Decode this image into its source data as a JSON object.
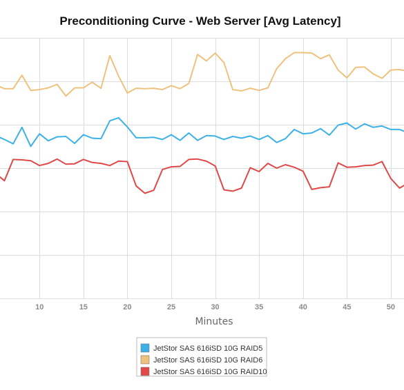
{
  "chart_data": {
    "type": "line",
    "title": "Preconditioning Curve - Web Server [Avg Latency]",
    "xlabel": "Minutes",
    "ylabel": "",
    "xlim": [
      5.5,
      51.5
    ],
    "ylim": [
      0,
      6
    ],
    "x_ticks": [
      10,
      15,
      20,
      25,
      30,
      35,
      40,
      45,
      50
    ],
    "grid": true,
    "legend_position": "bottom-center",
    "x": [
      5,
      6,
      7,
      8,
      9,
      10,
      11,
      12,
      13,
      14,
      15,
      16,
      17,
      18,
      19,
      20,
      21,
      22,
      23,
      24,
      25,
      26,
      27,
      28,
      29,
      30,
      31,
      32,
      33,
      34,
      35,
      36,
      37,
      38,
      39,
      40,
      41,
      42,
      43,
      44,
      45,
      46,
      47,
      48,
      49,
      50,
      51,
      52
    ],
    "series": [
      {
        "name": "JetStor SAS 616iSD 10G RAID5",
        "color": "#3cb1e8",
        "values": [
          3.75,
          3.66,
          3.56,
          3.94,
          3.5,
          3.79,
          3.63,
          3.72,
          3.73,
          3.57,
          3.77,
          3.69,
          3.68,
          4.09,
          4.16,
          3.95,
          3.7,
          3.7,
          3.71,
          3.66,
          3.77,
          3.64,
          3.81,
          3.64,
          3.75,
          3.74,
          3.66,
          3.73,
          3.69,
          3.74,
          3.66,
          3.75,
          3.59,
          3.68,
          3.89,
          3.79,
          3.81,
          3.91,
          3.76,
          3.99,
          4.04,
          3.9,
          4.02,
          3.94,
          3.97,
          3.89,
          3.89,
          3.81
        ]
      },
      {
        "name": "JetStor SAS 616iSD 10G RAID6",
        "color": "#eec27e",
        "values": [
          4.92,
          4.83,
          4.83,
          5.14,
          4.79,
          4.81,
          4.85,
          4.93,
          4.66,
          4.85,
          4.85,
          4.98,
          4.84,
          5.59,
          5.12,
          4.73,
          4.84,
          4.83,
          4.84,
          4.81,
          4.9,
          4.83,
          4.95,
          5.62,
          5.47,
          5.65,
          5.43,
          4.81,
          4.78,
          4.84,
          4.79,
          4.85,
          5.29,
          5.52,
          5.66,
          5.66,
          5.65,
          5.52,
          5.61,
          5.26,
          5.08,
          5.32,
          5.33,
          5.17,
          5.07,
          5.26,
          5.27,
          5.23
        ]
      },
      {
        "name": "JetStor SAS 616iSD 10G RAID10",
        "color": "#e04848",
        "values": [
          2.88,
          2.71,
          3.2,
          3.19,
          3.17,
          3.06,
          3.11,
          3.21,
          3.09,
          3.1,
          3.2,
          3.13,
          3.11,
          3.06,
          3.16,
          3.15,
          2.59,
          2.42,
          2.49,
          2.97,
          3.03,
          3.04,
          3.2,
          3.21,
          3.16,
          3.05,
          2.5,
          2.47,
          2.54,
          3.01,
          2.92,
          3.11,
          3.0,
          3.08,
          3.02,
          2.93,
          2.51,
          2.55,
          2.57,
          3.12,
          3.02,
          3.03,
          3.06,
          3.07,
          3.15,
          2.76,
          2.54,
          2.66
        ]
      }
    ]
  }
}
